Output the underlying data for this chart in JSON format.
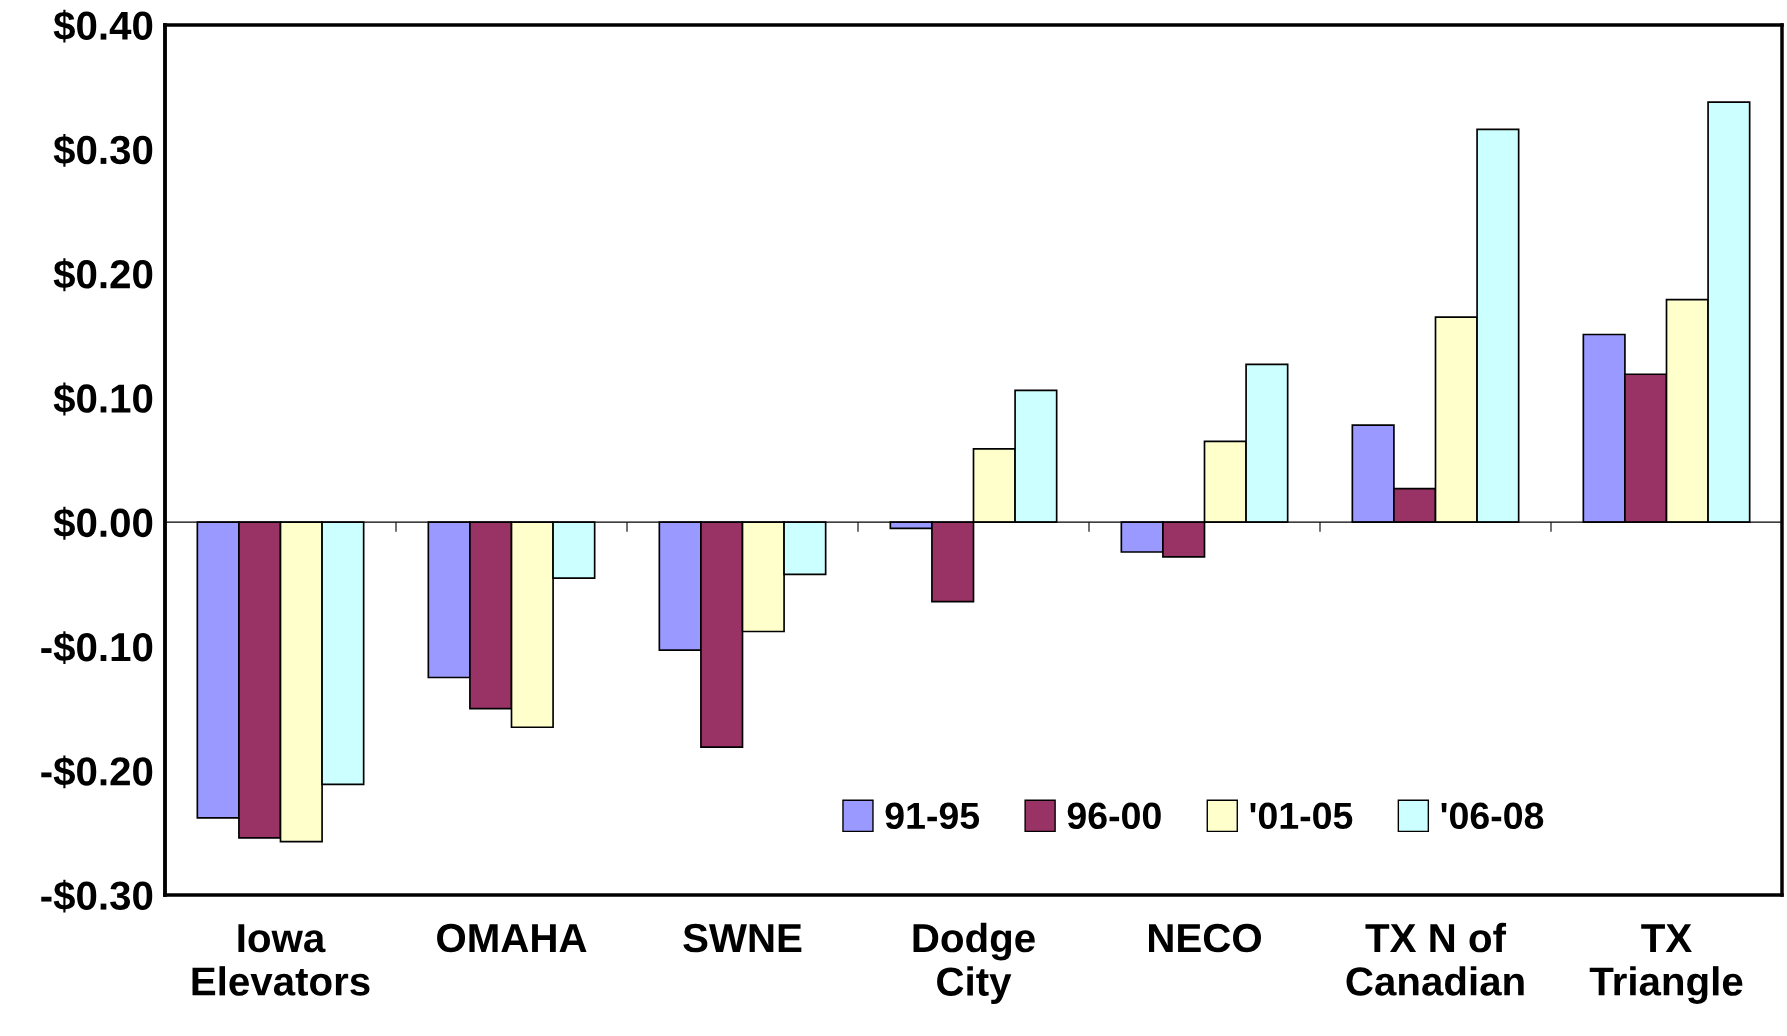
{
  "chart_data": {
    "type": "bar",
    "categories": [
      "Iowa\nElevators",
      "OMAHA",
      "SWNE",
      "Dodge\nCity",
      "NECO",
      "TX N of\nCanadian",
      "TX\nTriangle"
    ],
    "series": [
      {
        "name": "91-95",
        "color": "#9999ff",
        "values": [
          -0.238,
          -0.125,
          -0.103,
          -0.005,
          -0.024,
          0.078,
          0.151
        ]
      },
      {
        "name": "96-00",
        "color": "#993366",
        "values": [
          -0.254,
          -0.15,
          -0.181,
          -0.064,
          -0.028,
          0.027,
          0.119
        ]
      },
      {
        "name": "'01-05",
        "color": "#ffffcc",
        "values": [
          -0.257,
          -0.165,
          -0.088,
          0.059,
          0.065,
          0.165,
          0.179
        ]
      },
      {
        "name": "'06-08",
        "color": "#ccffff",
        "values": [
          -0.211,
          -0.045,
          -0.042,
          0.106,
          0.127,
          0.316,
          0.338
        ]
      }
    ],
    "ylim": [
      -0.3,
      0.4
    ],
    "yticks": [
      {
        "value": -0.3,
        "label": "-$0.30"
      },
      {
        "value": -0.2,
        "label": "-$0.20"
      },
      {
        "value": -0.1,
        "label": "-$0.10"
      },
      {
        "value": 0,
        "label": "$0.00"
      },
      {
        "value": 0.1,
        "label": "$0.10"
      },
      {
        "value": 0.2,
        "label": "$0.20"
      },
      {
        "value": 0.3,
        "label": "$0.30"
      },
      {
        "value": 0.4,
        "label": "$0.40"
      }
    ],
    "legend": "bottom right"
  }
}
